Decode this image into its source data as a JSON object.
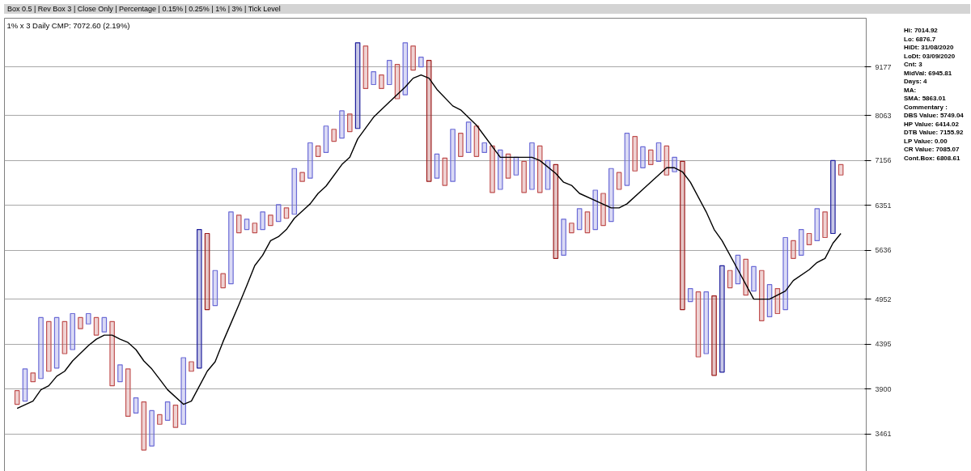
{
  "chart_data": {
    "type": "bar",
    "title": "1% x 3 Daily CMP: 7072.60 (2.19%)",
    "subtitle": "Box 0.5 | Rev Box 3 | Close Only | Percentage | 0.15% | 0.25% | 1% | 3% | Tick Level",
    "annotations": [
      "Hi: 7014.92",
      "Lo: 6876.7",
      "HiDt: 31/08/2020",
      "LoDt: 03/09/2020",
      "Cnt: 3",
      "MidVal: 6945.81",
      "Days: 4",
      "MA:",
      "SMA: 5863.01",
      "Commentary :",
      "DBS Value:  5749.04",
      "HP Value: 6414.02",
      "DTB Value: 7155.92",
      "LP Value: 0.00",
      "CR Value: 7085.07",
      "Cont.Box: 6808.61"
    ],
    "categories": [
      null,
      null,
      null,
      null,
      null,
      null,
      null,
      null,
      null,
      null,
      null,
      null,
      null,
      null,
      null,
      null,
      null,
      null,
      null,
      null,
      null,
      null,
      null,
      null,
      null,
      null,
      null,
      null,
      null,
      null,
      null,
      null,
      null,
      null,
      null,
      null,
      null,
      null,
      null,
      null,
      null,
      null,
      null,
      null,
      null,
      null,
      null,
      null,
      null,
      null,
      null,
      null,
      null,
      null,
      null,
      null,
      null,
      null,
      null,
      null,
      null,
      null,
      null,
      null,
      null,
      null,
      null,
      null,
      null,
      null,
      null,
      null,
      null,
      null,
      null,
      null,
      null,
      null,
      null,
      null,
      null,
      null,
      null,
      null,
      null,
      null,
      null,
      null,
      null,
      null,
      null,
      null,
      null,
      null,
      null,
      null,
      null,
      null,
      null,
      null,
      null,
      null,
      null,
      null,
      null
    ],
    "base": [
      3745,
      3777,
      3976,
      4010,
      4088,
      4123,
      4284,
      4330,
      4577,
      4636,
      4500,
      4538,
      3934,
      3976,
      3627,
      3659,
      3316,
      3352,
      3551,
      3589,
      3521,
      3551,
      4088,
      4123,
      4816,
      4868,
      5103,
      5157,
      5907,
      5958,
      5907,
      5958,
      6021,
      6086,
      6138,
      6204,
      6770,
      6828,
      7233,
      7311,
      7532,
      7595,
      7726,
      7792,
      8663,
      8756,
      8663,
      8756,
      8433,
      8523,
      9099,
      9177,
      6770,
      6828,
      6698,
      6770,
      7233,
      7311,
      7233,
      7311,
      6572,
      6628,
      6828,
      6886,
      6572,
      6628,
      6572,
      6628,
      5517,
      5564,
      5907,
      5958,
      5907,
      5958,
      6021,
      6086,
      6628,
      6698,
      6960,
      7020,
      7080,
      7141,
      6886,
      6945,
      4816,
      4920,
      4247,
      4284,
      4044,
      4079,
      5103,
      5157,
      5005,
      5059,
      4675,
      4725,
      4765,
      4816,
      5517,
      5564,
      5721,
      5783,
      5832,
      5895,
      6886
    ],
    "values": [
      138,
      337,
      94,
      705,
      577,
      592,
      381,
      435,
      138,
      129,
      215,
      177,
      731,
      182,
      487,
      151,
      453,
      330,
      92,
      180,
      216,
      687,
      105,
      1835,
      1079,
      475,
      195,
      1086,
      283,
      166,
      152,
      285,
      169,
      279,
      172,
      801,
      161,
      672,
      204,
      531,
      243,
      572,
      372,
      1993,
      1038,
      305,
      320,
      579,
      803,
      1262,
      602,
      239,
      2565,
      451,
      504,
      1005,
      460,
      615,
      609,
      189,
      865,
      730,
      451,
      332,
      569,
      872,
      865,
      528,
      1563,
      560,
      152,
      339,
      336,
      656,
      536,
      919,
      303,
      995,
      668,
      401,
      278,
      359,
      551,
      273,
      2325,
      172,
      801,
      764,
      951,
      1333,
      240,
      407,
      500,
      341,
      668,
      421,
      327,
      1016,
      266,
      394,
      174,
      514,
      411,
      1261,
      194
    ],
    "colors": [
      "#c05050",
      "#6b6bd6",
      "#c05050",
      "#6b6bd6",
      "#c05050",
      "#6b6bd6",
      "#c05050",
      "#6b6bd6",
      "#c05050",
      "#6b6bd6",
      "#c05050",
      "#6b6bd6",
      "#c05050",
      "#6b6bd6",
      "#c05050",
      "#6b6bd6",
      "#c05050",
      "#6b6bd6",
      "#c05050",
      "#6b6bd6",
      "#c05050",
      "#6b6bd6",
      "#c05050",
      "#1f1f9c",
      "#9c1c1c",
      "#6b6bd6",
      "#c05050",
      "#6b6bd6",
      "#c05050",
      "#6b6bd6",
      "#c05050",
      "#6b6bd6",
      "#c05050",
      "#6b6bd6",
      "#c05050",
      "#6b6bd6",
      "#c05050",
      "#6b6bd6",
      "#c05050",
      "#6b6bd6",
      "#c05050",
      "#6b6bd6",
      "#c05050",
      "#1f1f9c",
      "#c05050",
      "#6b6bd6",
      "#c05050",
      "#6b6bd6",
      "#c05050",
      "#6b6bd6",
      "#c05050",
      "#6b6bd6",
      "#9c1c1c",
      "#6b6bd6",
      "#c05050",
      "#6b6bd6",
      "#c05050",
      "#6b6bd6",
      "#c05050",
      "#6b6bd6",
      "#c05050",
      "#6b6bd6",
      "#c05050",
      "#6b6bd6",
      "#c05050",
      "#6b6bd6",
      "#c05050",
      "#6b6bd6",
      "#9c1c1c",
      "#6b6bd6",
      "#c05050",
      "#6b6bd6",
      "#c05050",
      "#6b6bd6",
      "#c05050",
      "#6b6bd6",
      "#c05050",
      "#6b6bd6",
      "#c05050",
      "#6b6bd6",
      "#c05050",
      "#6b6bd6",
      "#c05050",
      "#6b6bd6",
      "#9c1c1c",
      "#6b6bd6",
      "#c05050",
      "#6b6bd6",
      "#9c1c1c",
      "#1f1f9c",
      "#c05050",
      "#6b6bd6",
      "#c05050",
      "#6b6bd6",
      "#c05050",
      "#6b6bd6",
      "#c05050",
      "#6b6bd6",
      "#c05050",
      "#6b6bd6",
      "#c05050",
      "#6b6bd6",
      "#c05050",
      "#1f1f9c",
      "#c05050"
    ],
    "series": [
      {
        "type": "line",
        "color": "#000000",
        "values": [
          3705,
          null,
          3777,
          3892,
          3934,
          4035,
          4088,
          4202,
          null,
          4377,
          4452,
          4500,
          4500,
          4452,
          4413,
          4330,
          4202,
          4114,
          4002,
          3892,
          null,
          3745,
          3777,
          null,
          4088,
          4193,
          4423,
          4645,
          4878,
          5135,
          5412,
          5564,
          5783,
          5845,
          5958,
          6138,
          null,
          6378,
          6557,
          6685,
          null,
          7080,
          7218,
          7579,
          null,
          8029,
          null,
          8361,
          null,
          8700,
          8906,
          8983,
          8906,
          8645,
          null,
          8273,
          8185,
          null,
          7859,
          null,
          null,
          7218,
          null,
          null,
          null,
          7218,
          7156,
          null,
          6915,
          6755,
          6698,
          6557,
          null,
          6433,
          null,
          6310,
          6310,
          6378,
          null,
          6628,
          null,
          null,
          7020,
          7020,
          6945,
          6755,
          null,
          6243,
          5958,
          5783,
          null,
          5354,
          null,
          4952,
          null,
          4952,
          null,
          5059,
          5202,
          null,
          5354,
          5458,
          5517,
          5745,
          5895
        ]
      }
    ],
    "ylim": [
      3093,
      10444
    ],
    "yticks": [
      3461,
      3900,
      4395,
      4952,
      5636,
      6351,
      7156,
      8063,
      9177
    ],
    "log": true,
    "grid": "y",
    "tick_labels": "y"
  }
}
